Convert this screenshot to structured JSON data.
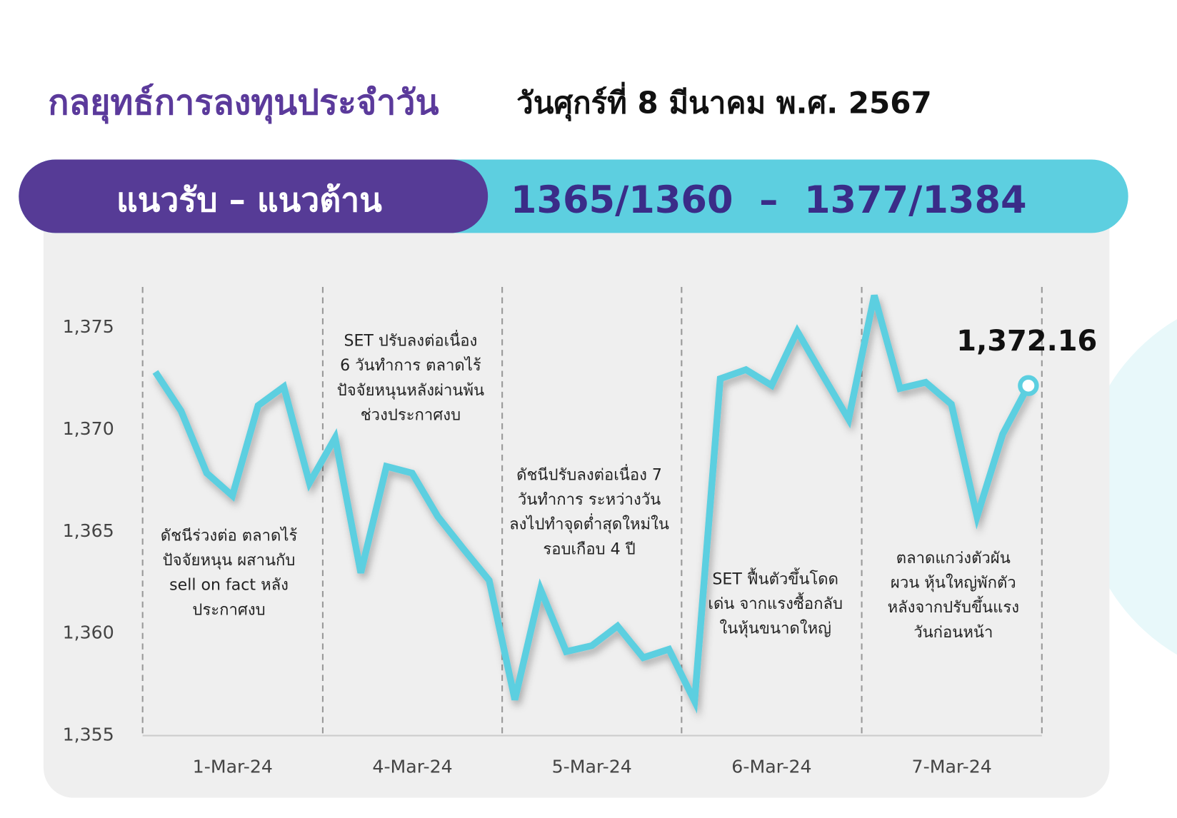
{
  "header": {
    "title": "กลยุทธ์การลงทุนประจำวัน",
    "date": "วันศุกร์ที่ 8 มีนาคม พ.ศ. 2567"
  },
  "banner": {
    "label": "แนวรับ – แนวต้าน",
    "levels": "1365/1360  –  1377/1384"
  },
  "chart_data": {
    "type": "line",
    "date_labels": [
      "1-Mar-24",
      "4-Mar-24",
      "5-Mar-24",
      "6-Mar-24",
      "7-Mar-24"
    ],
    "values": [
      1372.83,
      1370.92,
      1367.87,
      1366.76,
      1371.18,
      1372.1,
      1367.39,
      1369.6,
      1362.98,
      1368.2,
      1367.87,
      1365.74,
      1364.15,
      1362.61,
      1356.76,
      1362.17,
      1359.12,
      1359.41,
      1360.37,
      1358.82,
      1359.23,
      1356.69,
      1372.5,
      1372.94,
      1372.17,
      1374.82,
      1372.65,
      1370.51,
      1376.58,
      1372.02,
      1372.32,
      1371.25,
      1365.74,
      1369.78,
      1372.16
    ],
    "last_value_label": "1,372.16",
    "color": "#5ccfe0",
    "ylim": [
      1355,
      1377
    ],
    "yticks": [
      {
        "value": 1355,
        "label": "1,355"
      },
      {
        "value": 1360,
        "label": "1,360"
      },
      {
        "value": 1365,
        "label": "1,365"
      },
      {
        "value": 1370,
        "label": "1,370"
      },
      {
        "value": 1375,
        "label": "1,375"
      }
    ],
    "annotations": [
      [
        "ดัชนีร่วงต่อ ตลาดไร้",
        "ปัจจัยหนุน ผสานกับ",
        "sell on fact หลัง",
        "ประกาศงบ"
      ],
      [
        "SET ปรับลงต่อเนื่อง",
        "6 วันทำการ ตลาดไร้",
        "ปัจจัยหนุนหลังผ่านพ้น",
        "ช่วงประกาศงบ"
      ],
      [
        "ดัชนีปรับลงต่อเนื่อง 7",
        "วันทำการ ระหว่างวัน",
        "ลงไปทำจุดต่ำสุดใหม่ใน",
        "รอบเกือบ 4 ปี"
      ],
      [
        "SET ฟื้นตัวขึ้นโดด",
        "เด่น จากแรงซื้อกลับ",
        "ในหุ้นขนาดใหญ่"
      ],
      [
        "ตลาดแกว่งตัวผัน",
        "ผวน หุ้นใหญ่พักตัว",
        "หลังจากปรับขึ้นแรง",
        "วันก่อนหน้า"
      ]
    ]
  }
}
